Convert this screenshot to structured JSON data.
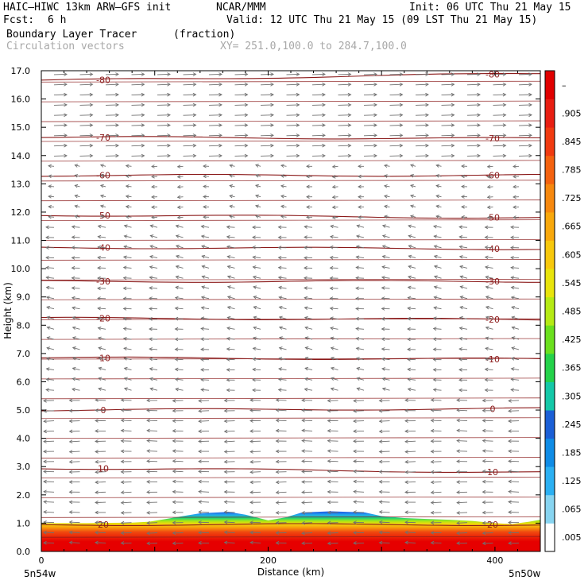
{
  "header": {
    "model": "HAIC–HIWC 13km ARW–GFS init",
    "org": "NCAR/MMM",
    "init": "Init: 06 UTC Thu 21 May 15",
    "fcst_label": "Fcst:",
    "fcst_value": "6 h",
    "valid": "Valid: 12 UTC Thu 21 May 15 (09 LST Thu 21 May 15)",
    "field": "Boundary Layer Tracer",
    "units": "(fraction)",
    "vectors": "Circulation vectors",
    "xy": "XY= 251.0,100.0 to 284.7,100.0"
  },
  "chart_data": {
    "type": "heatmap",
    "xlabel": "Distance (km)",
    "ylabel": "Height (km)",
    "xlim": [
      0,
      440
    ],
    "ylim": [
      0,
      17
    ],
    "x_ticks": [
      0,
      200,
      400
    ],
    "y_ticks": [
      "0.0",
      "1.0",
      "2.0",
      "3.0",
      "4.0",
      "5.0",
      "6.0",
      "7.0",
      "8.0",
      "9.0",
      "10.0",
      "11.0",
      "12.0",
      "13.0",
      "14.0",
      "15.0",
      "16.0",
      "17.0"
    ],
    "x_end_labels": {
      "left": "5n54w",
      "right": "5n50w"
    },
    "tracer_top_km": [
      [
        0,
        1.0
      ],
      [
        40,
        1.0
      ],
      [
        80,
        1.02
      ],
      [
        95,
        1.05
      ],
      [
        110,
        1.15
      ],
      [
        125,
        1.25
      ],
      [
        140,
        1.35
      ],
      [
        165,
        1.4
      ],
      [
        180,
        1.3
      ],
      [
        200,
        1.1
      ],
      [
        215,
        1.2
      ],
      [
        230,
        1.38
      ],
      [
        255,
        1.42
      ],
      [
        285,
        1.38
      ],
      [
        300,
        1.25
      ],
      [
        320,
        1.18
      ],
      [
        340,
        1.15
      ],
      [
        360,
        1.12
      ],
      [
        380,
        1.08
      ],
      [
        400,
        1.0
      ],
      [
        415,
        0.97
      ],
      [
        430,
        1.05
      ],
      [
        440,
        1.12
      ]
    ],
    "temperature_contours": [
      {
        "label": "20",
        "heights": [
          0.95,
          0.95
        ]
      },
      {
        "label": "10",
        "heights": [
          2.95,
          2.8
        ]
      },
      {
        "label": "0",
        "heights": [
          5.0,
          5.05
        ]
      },
      {
        "label": "-10",
        "heights": [
          6.85,
          6.8
        ]
      },
      {
        "label": "-20",
        "heights": [
          8.25,
          8.2
        ]
      },
      {
        "label": "-30",
        "heights": [
          9.55,
          9.55
        ]
      },
      {
        "label": "-40",
        "heights": [
          10.75,
          10.7
        ]
      },
      {
        "label": "-50",
        "heights": [
          11.9,
          11.8
        ]
      },
      {
        "label": "-60",
        "heights": [
          13.3,
          13.3
        ]
      },
      {
        "label": "-70",
        "heights": [
          14.65,
          14.6
        ]
      },
      {
        "label": "-80",
        "heights": [
          16.65,
          16.9
        ]
      }
    ],
    "colorbar": {
      "labels": [
        ".005",
        ".065",
        ".125",
        ".185",
        ".245",
        ".305",
        ".365",
        ".425",
        ".485",
        ".545",
        ".605",
        ".665",
        ".725",
        ".785",
        ".845",
        ".905",
        "–"
      ],
      "colors": [
        "#ffffff",
        "#87d4f0",
        "#2bb0f2",
        "#0f8ce6",
        "#1b5fd6",
        "#14c8a8",
        "#24d24a",
        "#6be01e",
        "#b5ea14",
        "#e8e40c",
        "#f7c80c",
        "#f8a80c",
        "#f6880e",
        "#f4620f",
        "#f03a10",
        "#e81e12",
        "#e00000"
      ]
    },
    "colors": {
      "contour": "#8b1a1a",
      "vector": "#707070",
      "frame": "#000000"
    }
  }
}
